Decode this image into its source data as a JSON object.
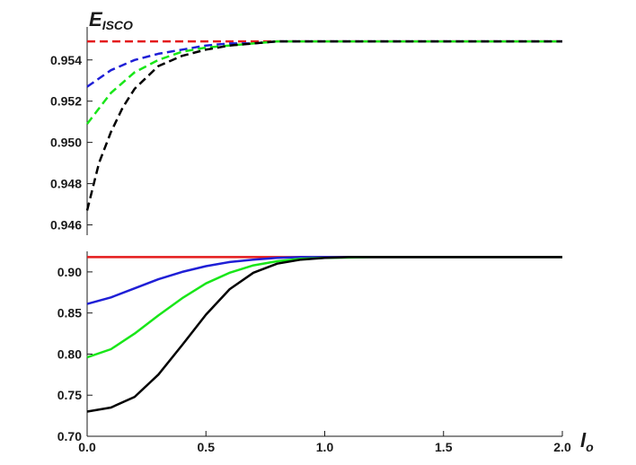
{
  "chart_data": [
    {
      "panel": "top",
      "type": "line",
      "title": "",
      "ylabel": {
        "main": "E",
        "sub": "ISCO"
      },
      "xlabel": "",
      "xlim": [
        0,
        2.0
      ],
      "ylim": [
        0.9455,
        0.9556
      ],
      "y_ticks": [
        "0.946",
        "0.948",
        "0.950",
        "0.952",
        "0.954"
      ],
      "x_ticks": [],
      "line_style": "dashed",
      "grid": false,
      "series": [
        {
          "color": "#e41a1c",
          "x": [
            0,
            0.25,
            0.5,
            1.0,
            1.5,
            2.0
          ],
          "y": [
            0.9549,
            0.9549,
            0.9549,
            0.9549,
            0.9549,
            0.9549
          ]
        },
        {
          "color": "#1f1fd6",
          "x": [
            0,
            0.1,
            0.2,
            0.3,
            0.4,
            0.5,
            0.6,
            0.7,
            0.8,
            1.0,
            1.5,
            2.0
          ],
          "y": [
            0.9527,
            0.9535,
            0.954,
            0.9543,
            0.9545,
            0.9547,
            0.9548,
            0.9548,
            0.9549,
            0.9549,
            0.9549,
            0.9549
          ]
        },
        {
          "color": "#19e619",
          "x": [
            0,
            0.1,
            0.2,
            0.3,
            0.4,
            0.5,
            0.6,
            0.7,
            0.8,
            1.0,
            1.5,
            2.0
          ],
          "y": [
            0.9509,
            0.9524,
            0.9534,
            0.954,
            0.9544,
            0.9546,
            0.9547,
            0.9548,
            0.9549,
            0.9549,
            0.9549,
            0.9549
          ]
        },
        {
          "color": "#000000",
          "x": [
            0,
            0.05,
            0.1,
            0.15,
            0.2,
            0.3,
            0.4,
            0.5,
            0.6,
            0.7,
            0.8,
            1.0,
            1.5,
            2.0
          ],
          "y": [
            0.9467,
            0.949,
            0.9505,
            0.9517,
            0.9526,
            0.9537,
            0.9542,
            0.9545,
            0.9547,
            0.9548,
            0.9549,
            0.9549,
            0.9549,
            0.9549
          ]
        }
      ]
    },
    {
      "panel": "bottom",
      "type": "line",
      "title": "",
      "ylabel": "",
      "xlabel": {
        "main": "l",
        "sub": "o"
      },
      "xlim": [
        0,
        2.0
      ],
      "ylim": [
        0.7,
        0.925
      ],
      "y_ticks": [
        "0.70",
        "0.75",
        "0.80",
        "0.85",
        "0.90"
      ],
      "x_ticks": [
        "0.0",
        "0.5",
        "1.0",
        "1.5",
        "2.0"
      ],
      "line_style": "solid",
      "grid": false,
      "series": [
        {
          "color": "#e41a1c",
          "x": [
            0,
            0.5,
            1.0,
            1.5,
            2.0
          ],
          "y": [
            0.918,
            0.918,
            0.918,
            0.918,
            0.918
          ]
        },
        {
          "color": "#1f1fd6",
          "x": [
            0,
            0.1,
            0.2,
            0.3,
            0.4,
            0.5,
            0.6,
            0.7,
            0.8,
            0.9,
            1.0,
            1.5,
            2.0
          ],
          "y": [
            0.861,
            0.869,
            0.88,
            0.891,
            0.9,
            0.907,
            0.912,
            0.915,
            0.917,
            0.918,
            0.918,
            0.918,
            0.918
          ]
        },
        {
          "color": "#19e619",
          "x": [
            0,
            0.1,
            0.2,
            0.3,
            0.4,
            0.5,
            0.6,
            0.7,
            0.8,
            0.9,
            1.0,
            1.2,
            1.5,
            2.0
          ],
          "y": [
            0.796,
            0.806,
            0.825,
            0.847,
            0.868,
            0.886,
            0.899,
            0.908,
            0.913,
            0.916,
            0.917,
            0.918,
            0.918,
            0.918
          ]
        },
        {
          "color": "#000000",
          "x": [
            0,
            0.1,
            0.2,
            0.3,
            0.4,
            0.5,
            0.6,
            0.7,
            0.8,
            0.9,
            1.0,
            1.1,
            1.2,
            1.5,
            2.0
          ],
          "y": [
            0.73,
            0.735,
            0.748,
            0.775,
            0.811,
            0.848,
            0.879,
            0.899,
            0.91,
            0.915,
            0.917,
            0.918,
            0.918,
            0.918,
            0.918
          ]
        }
      ]
    }
  ]
}
